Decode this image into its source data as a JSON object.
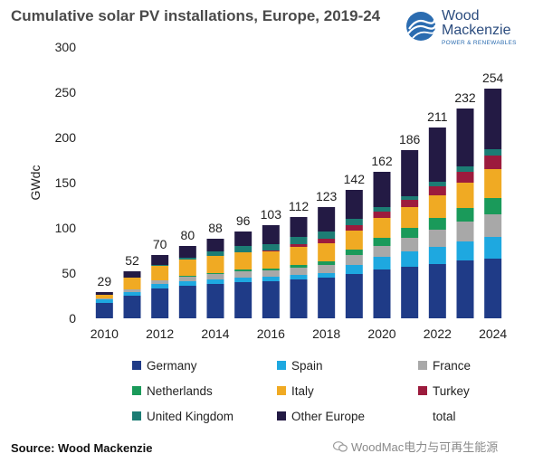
{
  "title": "Cumulative solar PV installations, Europe, 2019-24",
  "logo": {
    "line1": "Wood",
    "line2": "Mackenzie",
    "tagline": "POWER & RENEWABLES"
  },
  "source": "Source: Wood Mackenzie",
  "watermark": "WoodMac电力与可再生能源",
  "colors": {
    "Germany": "#1f3b87",
    "Spain": "#1ea8e0",
    "France": "#a8a8a8",
    "Netherlands": "#1a9a5a",
    "Italy": "#f0aa23",
    "Turkey": "#9c1b3d",
    "United Kingdom": "#1c7c74",
    "Other Europe": "#231a44"
  },
  "chart_data": {
    "type": "bar",
    "stacked": true,
    "title": "Cumulative solar PV installations, Europe, 2019-24",
    "ylabel": "GWdc",
    "xlabel": "",
    "ylim": [
      0,
      300
    ],
    "yticks": [
      0,
      50,
      100,
      150,
      200,
      250,
      300
    ],
    "xtick_labels": [
      "2010",
      "2012",
      "2014",
      "2016",
      "2018",
      "2020",
      "2022",
      "2024"
    ],
    "grid": false,
    "legend_position": "bottom",
    "categories": [
      "2010",
      "2011",
      "2012",
      "2013",
      "2014",
      "2015",
      "2016",
      "2017",
      "2018",
      "2019",
      "2020",
      "2021",
      "2022",
      "2023",
      "2024"
    ],
    "totals": [
      29,
      52,
      70,
      80,
      88,
      96,
      103,
      112,
      123,
      142,
      162,
      186,
      211,
      232,
      254
    ],
    "series": [
      {
        "name": "Germany",
        "values": [
          17,
          25,
          33,
          36,
          38,
          40,
          41,
          43,
          45,
          49,
          54,
          57,
          60,
          64,
          66
        ]
      },
      {
        "name": "Spain",
        "values": [
          4,
          4,
          5,
          5,
          5,
          5,
          5,
          5,
          5,
          10,
          14,
          17,
          19,
          21,
          24
        ]
      },
      {
        "name": "France",
        "values": [
          1,
          3,
          4,
          5,
          6,
          7,
          7,
          8,
          9,
          11,
          12,
          15,
          19,
          22,
          25
        ]
      },
      {
        "name": "Netherlands",
        "values": [
          0,
          0,
          0,
          1,
          1,
          2,
          2,
          3,
          4,
          6,
          9,
          11,
          13,
          15,
          18
        ]
      },
      {
        "name": "Italy",
        "values": [
          4,
          13,
          16,
          18,
          19,
          19,
          19,
          20,
          20,
          21,
          22,
          23,
          25,
          28,
          32
        ]
      },
      {
        "name": "Turkey",
        "values": [
          0,
          0,
          0,
          0,
          0,
          0,
          1,
          3,
          5,
          6,
          7,
          8,
          10,
          12,
          15
        ]
      },
      {
        "name": "United Kingdom",
        "values": [
          0,
          0,
          1,
          2,
          5,
          7,
          7,
          8,
          8,
          7,
          5,
          4,
          5,
          6,
          7
        ]
      },
      {
        "name": "Other Europe",
        "values": [
          3,
          7,
          11,
          13,
          14,
          16,
          21,
          22,
          27,
          32,
          39,
          51,
          60,
          64,
          67
        ]
      }
    ],
    "legend": [
      "Germany",
      "Spain",
      "France",
      "Netherlands",
      "Italy",
      "Turkey",
      "United Kingdom",
      "Other Europe",
      "total"
    ]
  }
}
